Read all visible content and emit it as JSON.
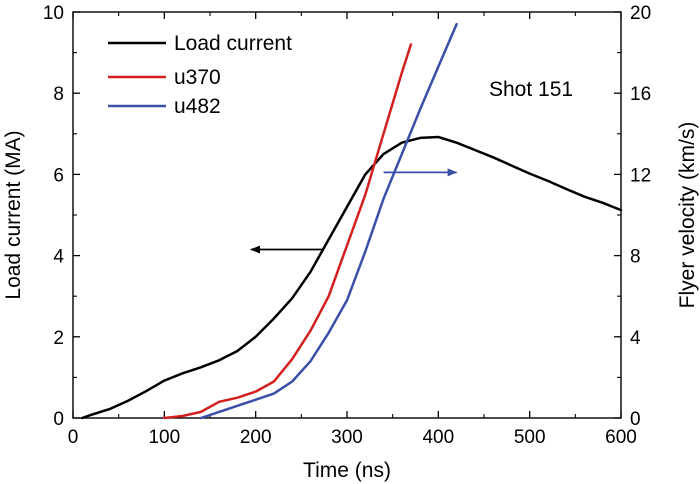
{
  "chart_data": {
    "type": "line",
    "annotation": "Shot 151",
    "x_axis": {
      "label": "Time (ns)",
      "range": [
        0,
        600
      ],
      "ticks": [
        "0",
        "100",
        "200",
        "300",
        "400",
        "500",
        "600"
      ]
    },
    "y_axis_left": {
      "label": "Load current (MA)",
      "range": [
        0,
        10
      ],
      "ticks": [
        "0",
        "2",
        "4",
        "6",
        "8",
        "10"
      ]
    },
    "y_axis_right": {
      "label": "Flyer velocity (km/s)",
      "range": [
        0,
        20
      ],
      "ticks": [
        "0",
        "4",
        "8",
        "12",
        "16",
        "20"
      ]
    },
    "legend_position": "top-left",
    "series": [
      {
        "name": "Load current",
        "axis": "left",
        "color": "#000000",
        "x": [
          10,
          20,
          40,
          60,
          80,
          100,
          120,
          140,
          160,
          180,
          200,
          220,
          240,
          260,
          280,
          300,
          320,
          340,
          360,
          380,
          400,
          420,
          440,
          460,
          480,
          500,
          520,
          540,
          560,
          580,
          600
        ],
        "y": [
          0.0,
          0.08,
          0.22,
          0.42,
          0.66,
          0.92,
          1.1,
          1.25,
          1.42,
          1.65,
          2.0,
          2.45,
          2.95,
          3.6,
          4.4,
          5.2,
          6.0,
          6.5,
          6.78,
          6.9,
          6.92,
          6.78,
          6.6,
          6.42,
          6.22,
          6.02,
          5.84,
          5.64,
          5.45,
          5.3,
          5.12
        ]
      },
      {
        "name": "u370",
        "axis": "right",
        "color": "#d41f1f",
        "x": [
          100,
          120,
          140,
          160,
          180,
          200,
          220,
          240,
          260,
          280,
          300,
          320,
          340,
          360,
          370
        ],
        "y": [
          0.0,
          0.1,
          0.3,
          0.8,
          1.0,
          1.3,
          1.8,
          2.9,
          4.3,
          6.0,
          8.5,
          11.0,
          14.0,
          17.0,
          18.4
        ]
      },
      {
        "name": "u482",
        "axis": "right",
        "color": "#3a4fa8",
        "x": [
          140,
          160,
          180,
          200,
          220,
          240,
          260,
          280,
          300,
          320,
          340,
          360,
          380,
          400,
          420
        ],
        "y": [
          0.0,
          0.3,
          0.6,
          0.9,
          1.2,
          1.8,
          2.8,
          4.2,
          5.8,
          8.2,
          10.8,
          13.0,
          15.2,
          17.3,
          19.4
        ]
      }
    ],
    "arrows": [
      {
        "series": "Load current",
        "direction": "left",
        "from": [
          275,
          4.15
        ],
        "to": [
          195,
          4.15
        ],
        "color": "#000000"
      },
      {
        "series": "u482",
        "direction": "right",
        "from": [
          340,
          12.1
        ],
        "to": [
          420,
          12.1
        ],
        "color": "#3a4fa8"
      }
    ]
  }
}
